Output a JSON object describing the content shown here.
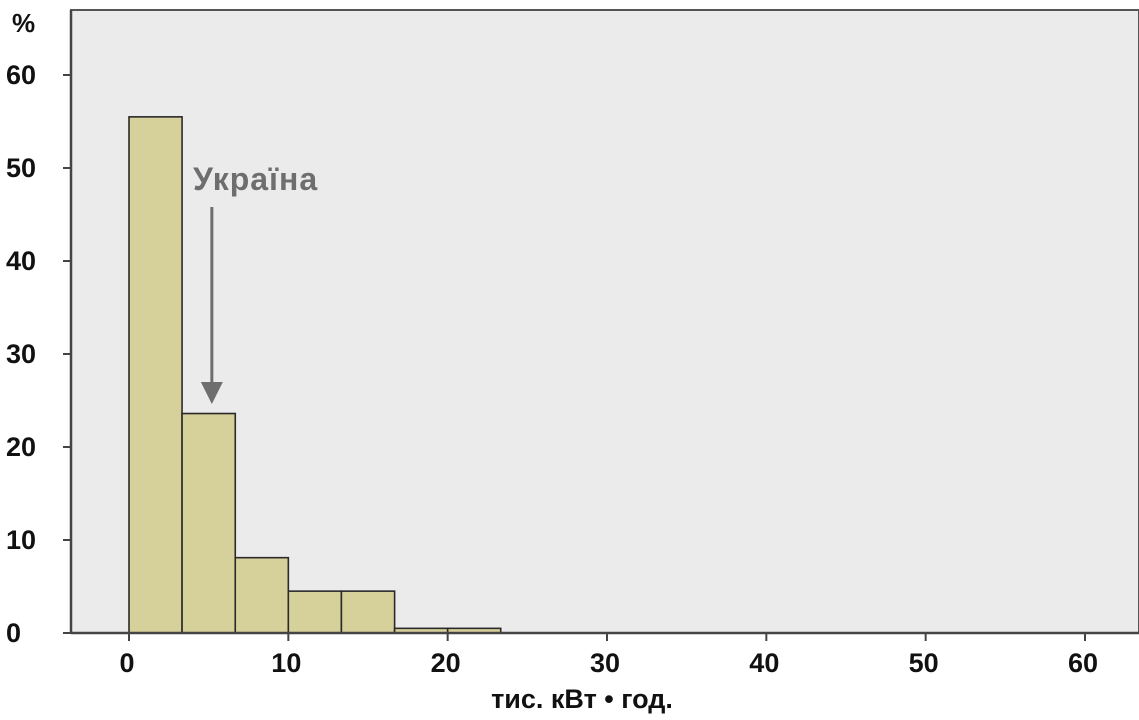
{
  "chart_data": {
    "type": "bar",
    "ylabel": "%",
    "xlabel": "тис. кВт • год.",
    "xlim": [
      0,
      60
    ],
    "ylim": [
      0,
      60
    ],
    "x_ticks": [
      "0",
      "10",
      "20",
      "30",
      "40",
      "50",
      "60"
    ],
    "y_ticks": [
      "0",
      "10",
      "20",
      "30",
      "40",
      "50",
      "60"
    ],
    "bins": [
      {
        "from": 0,
        "to": 3.33,
        "value": 55.5
      },
      {
        "from": 3.33,
        "to": 6.67,
        "value": 23.6
      },
      {
        "from": 6.67,
        "to": 10,
        "value": 8.1
      },
      {
        "from": 10,
        "to": 13.33,
        "value": 4.5
      },
      {
        "from": 13.33,
        "to": 16.67,
        "value": 4.5
      },
      {
        "from": 16.67,
        "to": 20,
        "value": 0.5
      },
      {
        "from": 20,
        "to": 23.33,
        "value": 0.5
      }
    ],
    "annotation": {
      "text": "Україна",
      "points_to_x": 5.2
    },
    "grid": false,
    "colors": {
      "bar_fill": "#d6d09a",
      "bar_stroke": "#2a2a2a",
      "plot_background": "#ebebeb",
      "annotation": "#6e6e6e"
    }
  }
}
